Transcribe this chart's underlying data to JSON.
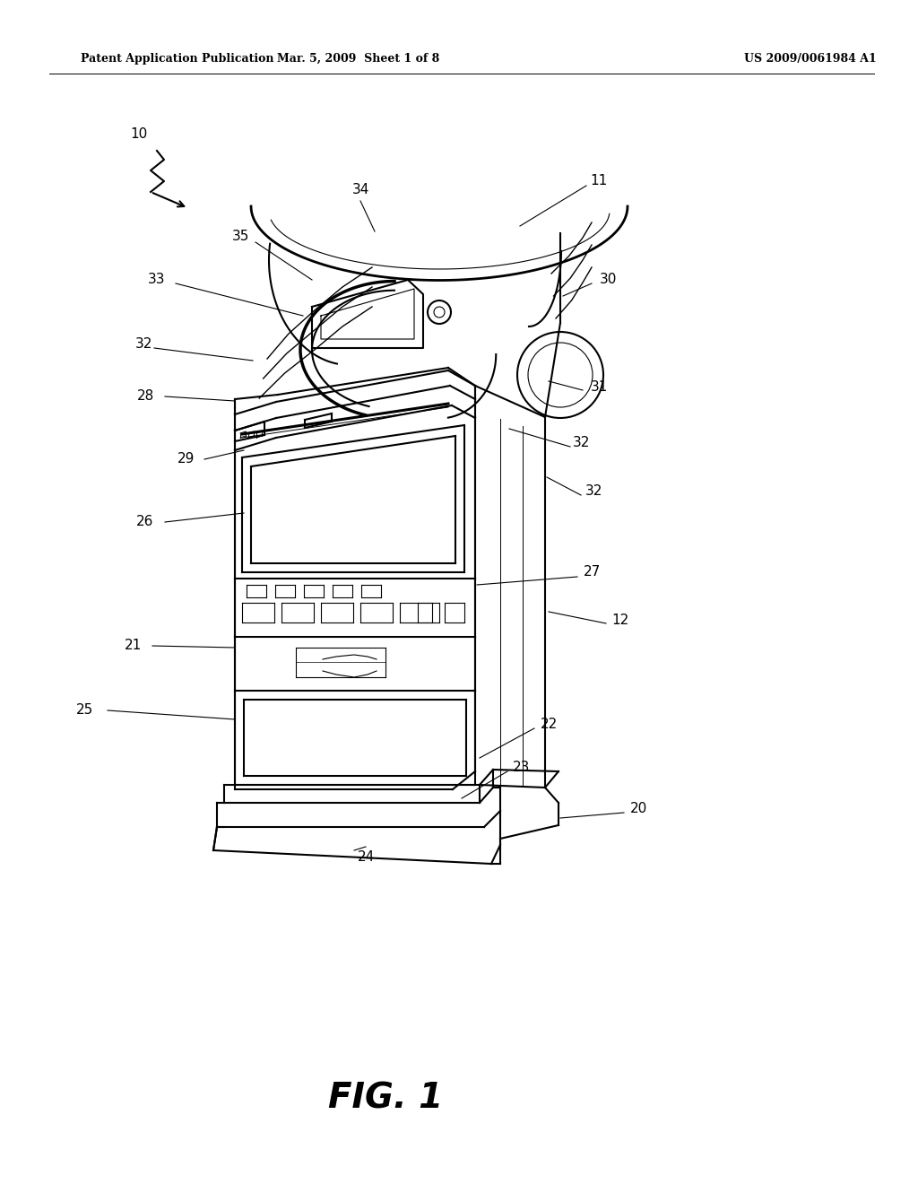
{
  "bg_color": "#ffffff",
  "header_left": "Patent Application Publication",
  "header_mid": "Mar. 5, 2009  Sheet 1 of 8",
  "header_right": "US 2009/0061984 A1",
  "fig_label": "FIG. 1",
  "line_color": "#000000",
  "text_color": "#000000",
  "line_width": 1.5
}
